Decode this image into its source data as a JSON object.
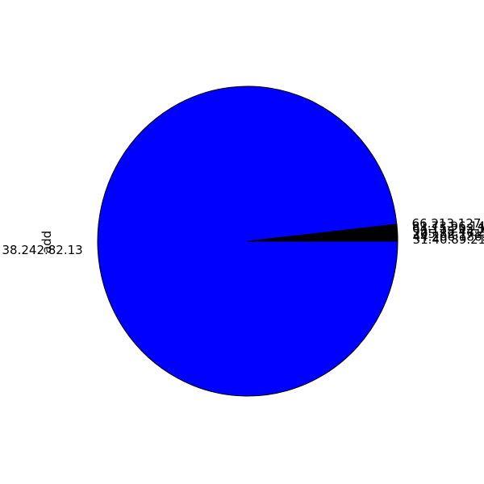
{
  "chart_data": {
    "type": "pie",
    "title": "",
    "ylabel": "add",
    "start_angle_deg": 0,
    "direction": "counterclockwise",
    "edge_color": "#000000",
    "slices": [
      {
        "label": "31.40.89.213",
        "value": 0.25,
        "color": "#000000"
      },
      {
        "label": "44.206.186.187",
        "value": 0.25,
        "color": "#000000"
      },
      {
        "label": "205.82.171.20",
        "value": 0.25,
        "color": "#000000"
      },
      {
        "label": "92.118.44.231",
        "value": 0.25,
        "color": "#000000"
      },
      {
        "label": "64.15.203.118",
        "value": 0.25,
        "color": "#000000"
      },
      {
        "label": "81.73.96.145",
        "value": 0.25,
        "color": "#000000"
      },
      {
        "label": "66.213.127.31",
        "value": 0.25,
        "color": "#000000"
      },
      {
        "label": "38.242.82.13",
        "value": 98.25,
        "color": "#0000ff"
      }
    ]
  }
}
